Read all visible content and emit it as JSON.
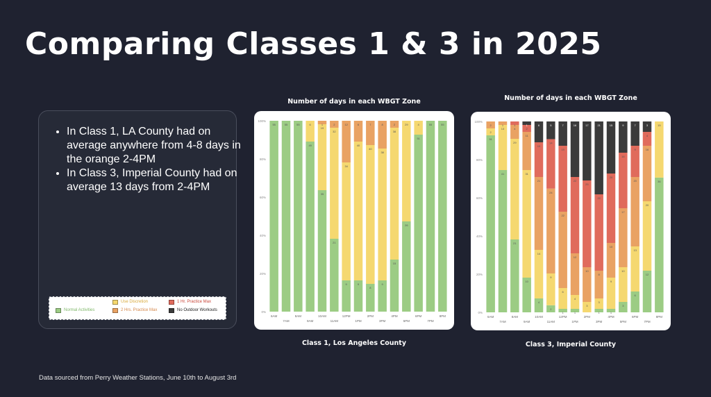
{
  "slide": {
    "title": "Comparing Classes 1 & 3 in 2025",
    "bullets": [
      "In Class 1, LA County had on average anywhere from 4-8 days in the orange 2-4PM",
      "In Class 3, Imperial County had on average 13 days from 2-4PM"
    ],
    "legend": [
      {
        "label": "Normal Activities",
        "color": "#9ccc84",
        "text_color": "#7fb86a"
      },
      {
        "label": "Use Discretion",
        "color": "#f5d870",
        "text_color": "#d9a93a"
      },
      {
        "label": "2 Hrs. Practice Max",
        "color": "#e9a263",
        "text_color": "#d4874a"
      },
      {
        "label": "1 Hr. Practice Max",
        "color": "#e06b5c",
        "text_color": "#c9473a"
      },
      {
        "label": "No Outdoor Workouts",
        "color": "#3b3b3b",
        "text_color": "#222222"
      }
    ],
    "footer": "Data sourced from Perry Weather Stations, June 10th to August 3rd"
  },
  "chart_data": [
    {
      "type": "bar",
      "stacked": true,
      "percent": true,
      "heading": "Number of days in each WBGT Zone",
      "caption": "Class 1, Los Angeles County",
      "categories": [
        "6AM",
        "7AM",
        "8AM",
        "9AM",
        "10AM",
        "11AM",
        "12PM",
        "1PM",
        "2PM",
        "3PM",
        "4PM",
        "5PM",
        "6PM",
        "7PM",
        "8PM"
      ],
      "ylim": [
        0,
        100
      ],
      "yticks": [
        "0%",
        "20%",
        "40%",
        "60%",
        "80%",
        "100%"
      ],
      "series_colors": [
        "#9ccc84",
        "#f5d870",
        "#e9a263",
        "#e06b5c",
        "#3b3b3b"
      ],
      "series": [
        {
          "name": "Normal Activities",
          "values": [
            55,
            55,
            55,
            49,
            35,
            21,
            9,
            9,
            8,
            9,
            15,
            26,
            51,
            55,
            55
          ]
        },
        {
          "name": "Use Discretion",
          "values": [
            0,
            0,
            0,
            6,
            19,
            32,
            34,
            40,
            40,
            38,
            38,
            29,
            4,
            0,
            0
          ]
        },
        {
          "name": "2 Hrs. Practice Max",
          "values": [
            0,
            0,
            0,
            0,
            1,
            2,
            12,
            6,
            7,
            8,
            2,
            0,
            0,
            0,
            0
          ]
        },
        {
          "name": "1 Hr. Practice Max",
          "values": [
            0,
            0,
            0,
            0,
            0,
            0,
            0,
            0,
            0,
            0,
            0,
            0,
            0,
            0,
            0
          ]
        },
        {
          "name": "No Outdoor Workouts",
          "values": [
            0,
            0,
            0,
            0,
            0,
            0,
            0,
            0,
            0,
            0,
            0,
            0,
            0,
            0,
            0
          ]
        }
      ]
    },
    {
      "type": "bar",
      "stacked": true,
      "percent": true,
      "heading": "Number of days in each WBGT Zone",
      "caption": "Class 3, Imperial County",
      "categories": [
        "6AM",
        "7AM",
        "8AM",
        "9AM",
        "10AM",
        "11AM",
        "12PM",
        "1PM",
        "2PM",
        "3PM",
        "4PM",
        "5PM",
        "6PM",
        "7PM",
        "8PM"
      ],
      "ylim": [
        0,
        100
      ],
      "yticks": [
        "0%",
        "20%",
        "40%",
        "60%",
        "80%",
        "100%"
      ],
      "series_colors": [
        "#9ccc84",
        "#f5d870",
        "#e9a263",
        "#e06b5c",
        "#3b3b3b"
      ],
      "series": [
        {
          "name": "Normal Activities",
          "values": [
            51,
            41,
            21,
            10,
            4,
            2,
            1,
            1,
            0,
            1,
            1,
            3,
            6,
            12,
            36
          ]
        },
        {
          "name": "Use Discretion",
          "values": [
            2,
            13,
            29,
            31,
            14,
            9,
            6,
            4,
            3,
            3,
            9,
            10,
            13,
            20,
            15
          ]
        },
        {
          "name": "2 Hrs. Practice Max",
          "values": [
            2,
            1,
            4,
            11,
            21,
            24,
            22,
            12,
            10,
            8,
            10,
            17,
            20,
            16,
            0
          ]
        },
        {
          "name": "1 Hr. Practice Max",
          "values": [
            0,
            0,
            1,
            2,
            10,
            14,
            19,
            22,
            25,
            22,
            20,
            16,
            9,
            4,
            0
          ]
        },
        {
          "name": "No Outdoor Workouts",
          "values": [
            0,
            0,
            0,
            1,
            6,
            5,
            7,
            16,
            17,
            21,
            15,
            9,
            7,
            3,
            0
          ]
        }
      ]
    }
  ]
}
